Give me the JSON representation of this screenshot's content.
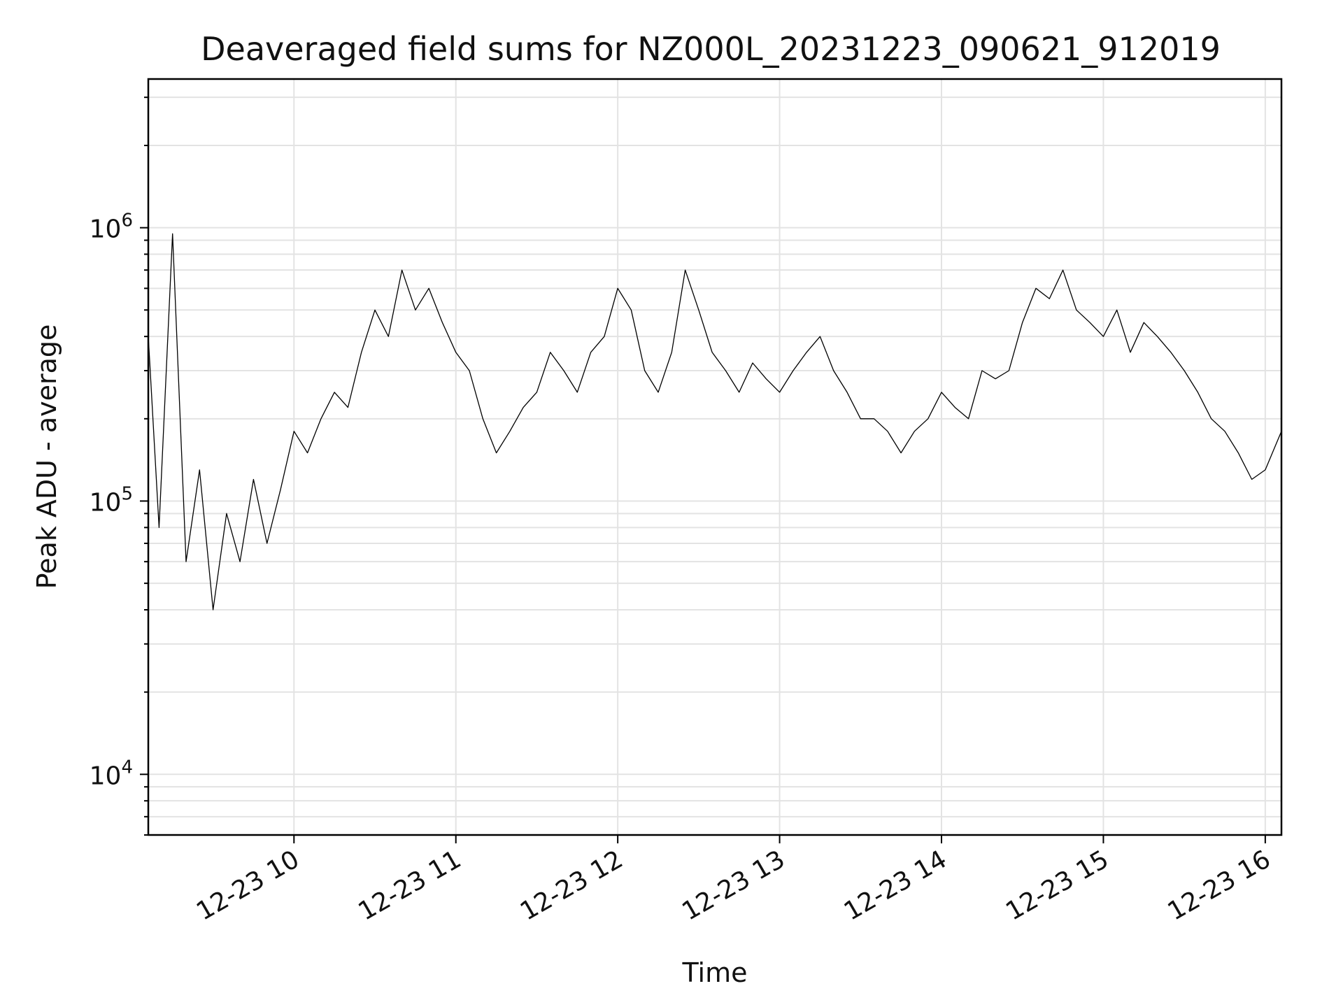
{
  "chart_data": {
    "type": "line",
    "title": "Deaveraged field sums for NZ000L_20231223_090621_912019",
    "xlabel": "Time",
    "ylabel": "Peak ADU - average",
    "yscale": "log",
    "ylim": [
      6000,
      3500000
    ],
    "xlim": [
      "2023-12-23T09:06:00",
      "2023-12-23T16:06:00"
    ],
    "grid": true,
    "legend": "none",
    "x_ticks": [
      {
        "t": "2023-12-23T10:00:00",
        "label": "12-23 10"
      },
      {
        "t": "2023-12-23T11:00:00",
        "label": "12-23 11"
      },
      {
        "t": "2023-12-23T12:00:00",
        "label": "12-23 12"
      },
      {
        "t": "2023-12-23T13:00:00",
        "label": "12-23 13"
      },
      {
        "t": "2023-12-23T14:00:00",
        "label": "12-23 14"
      },
      {
        "t": "2023-12-23T15:00:00",
        "label": "12-23 15"
      },
      {
        "t": "2023-12-23T16:00:00",
        "label": "12-23 16"
      }
    ],
    "y_ticks": [
      {
        "value": 10000,
        "base": "10",
        "exp": "4"
      },
      {
        "value": 100000,
        "base": "10",
        "exp": "5"
      },
      {
        "value": 1000000,
        "base": "10",
        "exp": "6"
      }
    ],
    "line_color": "#000000",
    "series": [
      {
        "x": [
          "2023-12-23T09:06:00",
          "2023-12-23T09:10:00",
          "2023-12-23T09:15:00",
          "2023-12-23T09:20:00",
          "2023-12-23T09:25:00",
          "2023-12-23T09:30:00",
          "2023-12-23T09:35:00",
          "2023-12-23T09:40:00",
          "2023-12-23T09:45:00",
          "2023-12-23T09:50:00",
          "2023-12-23T09:55:00",
          "2023-12-23T10:00:00",
          "2023-12-23T10:05:00",
          "2023-12-23T10:10:00",
          "2023-12-23T10:15:00",
          "2023-12-23T10:20:00",
          "2023-12-23T10:25:00",
          "2023-12-23T10:30:00",
          "2023-12-23T10:35:00",
          "2023-12-23T10:40:00",
          "2023-12-23T10:45:00",
          "2023-12-23T10:50:00",
          "2023-12-23T10:55:00",
          "2023-12-23T11:00:00",
          "2023-12-23T11:05:00",
          "2023-12-23T11:10:00",
          "2023-12-23T11:15:00",
          "2023-12-23T11:20:00",
          "2023-12-23T11:25:00",
          "2023-12-23T11:30:00",
          "2023-12-23T11:35:00",
          "2023-12-23T11:40:00",
          "2023-12-23T11:45:00",
          "2023-12-23T11:50:00",
          "2023-12-23T11:55:00",
          "2023-12-23T12:00:00",
          "2023-12-23T12:05:00",
          "2023-12-23T12:10:00",
          "2023-12-23T12:15:00",
          "2023-12-23T12:20:00",
          "2023-12-23T12:25:00",
          "2023-12-23T12:30:00",
          "2023-12-23T12:35:00",
          "2023-12-23T12:40:00",
          "2023-12-23T12:45:00",
          "2023-12-23T12:50:00",
          "2023-12-23T12:55:00",
          "2023-12-23T13:00:00",
          "2023-12-23T13:05:00",
          "2023-12-23T13:10:00",
          "2023-12-23T13:15:00",
          "2023-12-23T13:20:00",
          "2023-12-23T13:25:00",
          "2023-12-23T13:30:00",
          "2023-12-23T13:35:00",
          "2023-12-23T13:40:00",
          "2023-12-23T13:45:00",
          "2023-12-23T13:50:00",
          "2023-12-23T13:55:00",
          "2023-12-23T14:00:00",
          "2023-12-23T14:05:00",
          "2023-12-23T14:10:00",
          "2023-12-23T14:15:00",
          "2023-12-23T14:20:00",
          "2023-12-23T14:25:00",
          "2023-12-23T14:30:00",
          "2023-12-23T14:35:00",
          "2023-12-23T14:40:00",
          "2023-12-23T14:45:00",
          "2023-12-23T14:50:00",
          "2023-12-23T14:55:00",
          "2023-12-23T15:00:00",
          "2023-12-23T15:05:00",
          "2023-12-23T15:10:00",
          "2023-12-23T15:15:00",
          "2023-12-23T15:20:00",
          "2023-12-23T15:25:00",
          "2023-12-23T15:30:00",
          "2023-12-23T15:35:00",
          "2023-12-23T15:40:00",
          "2023-12-23T15:45:00",
          "2023-12-23T15:50:00",
          "2023-12-23T15:55:00",
          "2023-12-23T16:00:00",
          "2023-12-23T16:06:00"
        ],
        "y": [
          400000,
          80000,
          950000,
          60000,
          130000,
          40000,
          90000,
          60000,
          120000,
          70000,
          110000,
          180000,
          150000,
          200000,
          250000,
          220000,
          350000,
          500000,
          400000,
          700000,
          500000,
          600000,
          450000,
          350000,
          300000,
          200000,
          150000,
          180000,
          220000,
          250000,
          350000,
          300000,
          250000,
          350000,
          400000,
          600000,
          500000,
          300000,
          250000,
          350000,
          700000,
          500000,
          350000,
          300000,
          250000,
          320000,
          280000,
          250000,
          300000,
          350000,
          400000,
          300000,
          250000,
          200000,
          200000,
          180000,
          150000,
          180000,
          200000,
          250000,
          220000,
          200000,
          300000,
          280000,
          300000,
          450000,
          600000,
          550000,
          700000,
          500000,
          450000,
          400000,
          500000,
          350000,
          450000,
          400000,
          350000,
          300000,
          250000,
          200000,
          180000,
          150000,
          120000,
          130000,
          180000
        ]
      }
    ]
  }
}
